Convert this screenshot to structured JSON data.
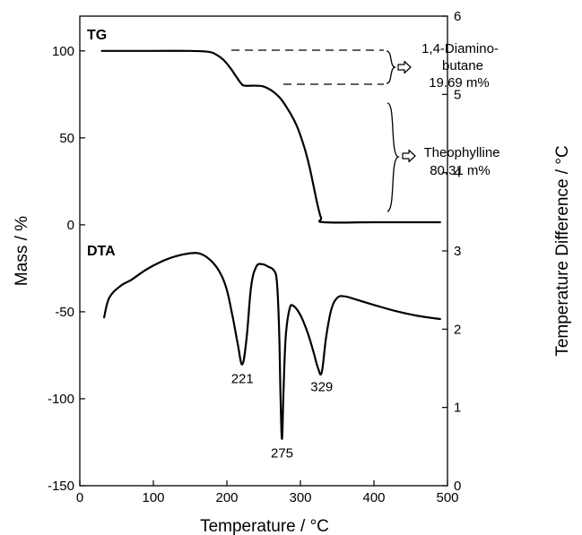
{
  "chart_data": {
    "type": "line",
    "xlabel": "Temperature / °C",
    "ylabel_left": "Mass / %",
    "ylabel_right": "Temperature Difference / °C",
    "xlim": [
      0,
      500
    ],
    "ylim_left": [
      -150,
      120
    ],
    "ylim_right": [
      0,
      6
    ],
    "x_ticks": [
      0,
      100,
      200,
      300,
      400,
      500
    ],
    "y_ticks_left": [
      -150,
      -100,
      -50,
      0,
      50,
      100
    ],
    "y_ticks_right": [
      0,
      1,
      2,
      3,
      4,
      5,
      6
    ],
    "grid": false,
    "series": [
      {
        "name": "TG",
        "axis": "left",
        "x": [
          30,
          100,
          150,
          175,
          185,
          195,
          205,
          213,
          220,
          225,
          250,
          270,
          285,
          295,
          305,
          312,
          318,
          323,
          328,
          332,
          400,
          490
        ],
        "y": [
          100,
          100,
          100,
          99.5,
          98,
          95,
          90,
          85,
          81,
          80,
          79.5,
          74,
          65,
          57,
          45,
          34,
          22,
          12,
          4,
          1.5,
          1.5,
          1.5
        ]
      },
      {
        "name": "DTA",
        "axis": "right",
        "x": [
          33,
          40,
          55,
          70,
          90,
          110,
          130,
          150,
          165,
          180,
          192,
          200,
          208,
          215,
          221,
          227,
          233,
          240,
          248,
          256,
          264,
          268,
          271,
          273,
          275,
          277,
          280,
          285,
          290,
          300,
          310,
          318,
          324,
          329,
          335,
          342,
          350,
          360,
          375,
          400,
          430,
          460,
          490
        ],
        "y": [
          2.15,
          2.4,
          2.55,
          2.63,
          2.76,
          2.86,
          2.93,
          2.97,
          2.96,
          2.86,
          2.7,
          2.5,
          2.15,
          1.8,
          1.55,
          1.9,
          2.55,
          2.8,
          2.83,
          2.8,
          2.75,
          2.6,
          2.0,
          1.1,
          0.6,
          1.2,
          1.9,
          2.25,
          2.3,
          2.18,
          1.95,
          1.7,
          1.5,
          1.45,
          1.9,
          2.25,
          2.4,
          2.42,
          2.38,
          2.31,
          2.23,
          2.17,
          2.13
        ]
      }
    ],
    "curve_labels": {
      "tg": "TG",
      "dta": "DTA"
    },
    "annotations": {
      "diaminobutane_line1": "1,4-Diamino-",
      "diaminobutane_line2": "butane",
      "diaminobutane_percent": "19.69 m%",
      "theophylline_name": "Theophylline",
      "theophylline_percent": "80.31 m%"
    },
    "peaks": [
      {
        "x": 221,
        "label": "221"
      },
      {
        "x": 275,
        "label": "275"
      },
      {
        "x": 329,
        "label": "329"
      }
    ]
  }
}
